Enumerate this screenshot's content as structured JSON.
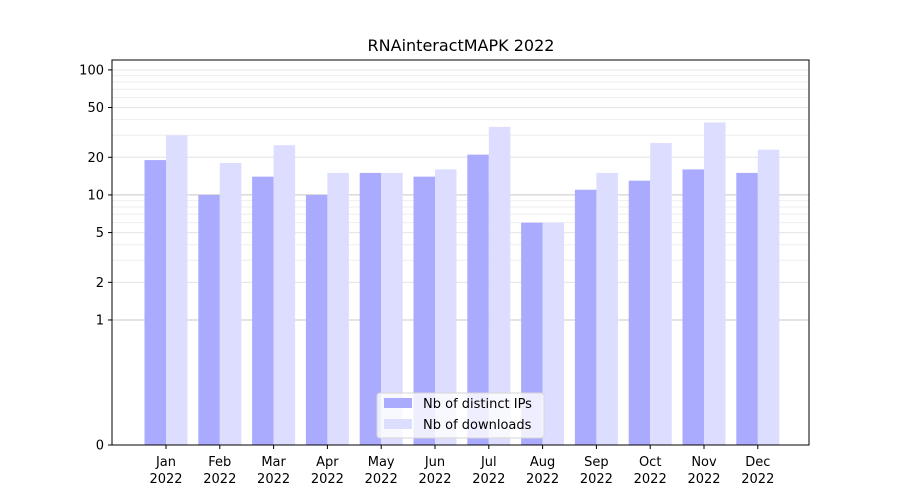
{
  "chart_data": {
    "type": "bar",
    "title": "RNAinteractMAPK 2022",
    "xlabel": "",
    "ylabel": "",
    "y_scale": "symlog",
    "ylim": [
      0,
      120
    ],
    "y_ticks": [
      0,
      1,
      2,
      5,
      10,
      20,
      50,
      100
    ],
    "y_tick_labels": [
      "0",
      "1",
      "2",
      "5",
      "10",
      "20",
      "50",
      "100"
    ],
    "grid": true,
    "legend_position": "bottom-center",
    "categories": [
      "Jan\n2022",
      "Feb\n2022",
      "Mar\n2022",
      "Apr\n2022",
      "May\n2022",
      "Jun\n2022",
      "Jul\n2022",
      "Aug\n2022",
      "Sep\n2022",
      "Oct\n2022",
      "Nov\n2022",
      "Dec\n2022"
    ],
    "series": [
      {
        "name": "Nb of distinct IPs",
        "color": "#aaaaff",
        "values": [
          19,
          10,
          14,
          10,
          15,
          14,
          21,
          6,
          11,
          13,
          16,
          15
        ]
      },
      {
        "name": "Nb of downloads",
        "color": "#ddddff",
        "values": [
          30,
          18,
          25,
          15,
          15,
          16,
          35,
          6,
          15,
          26,
          38,
          23
        ]
      }
    ]
  }
}
